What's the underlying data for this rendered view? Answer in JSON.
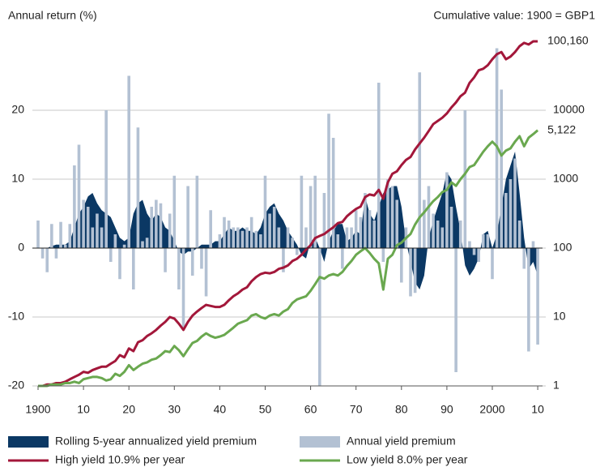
{
  "chart_data": {
    "type": "combo",
    "title": "Annual return (%)",
    "y2_title": "Cumulative value: 1900 = GBP1",
    "x": [
      1900,
      1901,
      1902,
      1903,
      1904,
      1905,
      1906,
      1907,
      1908,
      1909,
      1910,
      1911,
      1912,
      1913,
      1914,
      1915,
      1916,
      1917,
      1918,
      1919,
      1920,
      1921,
      1922,
      1923,
      1924,
      1925,
      1926,
      1927,
      1928,
      1929,
      1930,
      1931,
      1932,
      1933,
      1934,
      1935,
      1936,
      1937,
      1938,
      1939,
      1940,
      1941,
      1942,
      1943,
      1944,
      1945,
      1946,
      1947,
      1948,
      1949,
      1950,
      1951,
      1952,
      1953,
      1954,
      1955,
      1956,
      1957,
      1958,
      1959,
      1960,
      1961,
      1962,
      1963,
      1964,
      1965,
      1966,
      1967,
      1968,
      1969,
      1970,
      1971,
      1972,
      1973,
      1974,
      1975,
      1976,
      1977,
      1978,
      1979,
      1980,
      1981,
      1982,
      1983,
      1984,
      1985,
      1986,
      1987,
      1988,
      1989,
      1990,
      1991,
      1992,
      1993,
      1994,
      1995,
      1996,
      1997,
      1998,
      1999,
      2000,
      2001,
      2002,
      2003,
      2004,
      2005,
      2006,
      2007,
      2008,
      2009,
      2010
    ],
    "xlim": [
      1900,
      2011
    ],
    "xticks": [
      1900,
      {
        "value": 1910,
        "label": "10"
      },
      {
        "value": 1920,
        "label": "20"
      },
      {
        "value": 1930,
        "label": "30"
      },
      {
        "value": 1940,
        "label": "40"
      },
      {
        "value": 1950,
        "label": "50"
      },
      {
        "value": 1960,
        "label": "60"
      },
      {
        "value": 1970,
        "label": "70"
      },
      {
        "value": 1980,
        "label": "80"
      },
      {
        "value": 1990,
        "label": "90"
      },
      2000,
      {
        "value": 2010,
        "label": "10"
      }
    ],
    "ylim": [
      -20,
      30
    ],
    "yticks": [
      -20,
      -10,
      0,
      10,
      20
    ],
    "y2lim": [
      1,
      100000
    ],
    "y2ticks": [
      1,
      10,
      100,
      1000,
      10000
    ],
    "y2log": true,
    "grid": true,
    "series": [
      {
        "name": "Rolling 5-year annualized yield premium",
        "type": "area",
        "color": "#0b3864",
        "values": [
          0,
          0,
          0,
          0.3,
          0.5,
          0.5,
          0.5,
          1,
          3,
          5,
          6,
          7.5,
          8,
          6.5,
          5.5,
          5,
          4.5,
          3,
          1.5,
          1,
          1.5,
          5,
          6.5,
          7,
          5,
          4,
          5,
          4.5,
          3,
          2.5,
          1,
          -0.5,
          -1,
          -0.5,
          -0.5,
          0,
          0.5,
          0.5,
          0.5,
          1,
          1,
          2,
          3,
          2.5,
          2.5,
          3,
          2.5,
          2.5,
          2,
          3,
          5,
          6,
          6.5,
          5,
          4,
          2.5,
          1.5,
          0.5,
          -1,
          -1.5,
          1,
          1.5,
          0,
          -2,
          1,
          2.5,
          3.5,
          3.5,
          1,
          1.5,
          2.5,
          2,
          7.5,
          5,
          4,
          6,
          8,
          8.5,
          9,
          9,
          6,
          1,
          -2,
          -5,
          -6,
          -4,
          1.5,
          4,
          6,
          8,
          11,
          10,
          6,
          2.5,
          -2.5,
          -4,
          -3,
          -1.5,
          2,
          2.5,
          0,
          2,
          6,
          10,
          12,
          14,
          8,
          1.5,
          -3,
          -2,
          -4
        ]
      },
      {
        "name": "Annual yield premium",
        "type": "bar",
        "color": "#b3c1d3",
        "values": [
          4,
          -1.5,
          -3.5,
          3.5,
          -1.5,
          3.8,
          0.5,
          3.5,
          12,
          15,
          7,
          6,
          3,
          5,
          3,
          20,
          -2,
          2,
          -4.5,
          0.5,
          25,
          -6,
          17.5,
          1,
          1.5,
          6,
          7,
          6.5,
          -3.5,
          5,
          10.5,
          -6,
          -11.5,
          9,
          -4,
          10.5,
          -3,
          -7,
          5.5,
          0,
          2,
          4.5,
          4,
          3,
          3,
          2.5,
          3,
          4.5,
          2.5,
          2,
          10.5,
          5,
          6,
          3,
          -3.5,
          3,
          1.5,
          -1,
          10.5,
          3,
          9,
          10.5,
          -20,
          8,
          19.5,
          16,
          2,
          -3,
          3,
          3,
          5.5,
          4.5,
          8,
          5.5,
          4,
          24,
          -2,
          10,
          9,
          7,
          -5,
          3,
          -7,
          -6.5,
          25.5,
          7,
          9,
          5,
          4,
          3,
          11,
          6,
          -18,
          4,
          20,
          1,
          -1,
          -2,
          2,
          2,
          -4.5,
          29,
          23,
          8,
          10,
          13,
          4,
          -3,
          -15,
          1,
          -14
        ]
      },
      {
        "name": "High yield 10.9% per year",
        "type": "line",
        "axis": "y2",
        "color": "#a3173a",
        "values": [
          1,
          1,
          1.05,
          1.05,
          1.1,
          1.1,
          1.15,
          1.25,
          1.35,
          1.45,
          1.6,
          1.55,
          1.7,
          1.8,
          1.9,
          1.9,
          2.1,
          2.3,
          2.8,
          2.6,
          3.5,
          3.2,
          4.3,
          4.6,
          5.3,
          5.8,
          6.5,
          7.5,
          8.5,
          10,
          9.5,
          8,
          6.5,
          8.5,
          10.5,
          12,
          13.5,
          15,
          14.5,
          14,
          14,
          15,
          17.5,
          20,
          22,
          25,
          27,
          33,
          38,
          42,
          44,
          43,
          45,
          50,
          52,
          56,
          65,
          70,
          80,
          95,
          110,
          140,
          150,
          160,
          180,
          200,
          230,
          240,
          290,
          330,
          370,
          400,
          550,
          600,
          580,
          700,
          520,
          900,
          1200,
          1300,
          1600,
          1900,
          2100,
          2700,
          3300,
          4000,
          5000,
          6300,
          7000,
          7800,
          9000,
          11000,
          13000,
          16000,
          18000,
          25000,
          30000,
          38000,
          40000,
          45000,
          55000,
          65000,
          70000,
          55000,
          60000,
          70000,
          85000,
          95000,
          90000,
          100000,
          100160
        ],
        "value_labels": [
          null,
          null,
          null,
          null,
          null,
          null,
          null,
          null,
          null,
          null,
          null,
          null,
          null,
          null,
          null,
          null,
          null,
          null,
          null,
          null,
          null,
          null,
          null,
          null,
          null,
          null,
          null,
          null,
          null,
          null,
          null,
          null,
          null,
          null,
          null,
          null,
          null,
          null,
          null,
          null,
          null,
          null,
          null,
          null,
          null,
          null,
          null,
          null,
          null,
          null,
          null,
          null,
          null,
          null,
          null,
          null,
          null,
          null,
          null,
          null,
          null,
          null,
          null,
          null,
          null,
          null,
          null,
          null,
          null,
          null,
          null,
          null,
          null,
          null,
          null,
          null,
          null,
          null,
          null,
          null,
          null,
          null,
          null,
          null,
          null,
          null,
          null,
          null,
          null,
          null,
          null,
          null,
          null,
          null,
          null,
          null,
          null,
          null,
          null,
          null,
          null,
          null,
          null,
          null,
          null,
          null,
          null,
          null,
          null,
          null,
          "100,160"
        ]
      },
      {
        "name": "Low yield 8.0% per year",
        "type": "line",
        "axis": "y2",
        "color": "#6aa84f",
        "values": [
          1,
          1,
          1,
          1.05,
          1.05,
          1.05,
          1.1,
          1.1,
          1.15,
          1.1,
          1.25,
          1.3,
          1.35,
          1.35,
          1.3,
          1.2,
          1.25,
          1.5,
          1.4,
          1.6,
          2,
          1.7,
          1.9,
          2.1,
          2.2,
          2.4,
          2.5,
          2.8,
          3.2,
          3.1,
          3.8,
          3.3,
          2.7,
          3.4,
          4.2,
          4.5,
          5.2,
          5.8,
          5.3,
          5,
          5.2,
          5.5,
          6.2,
          7,
          8,
          8.5,
          9,
          10.5,
          11,
          10,
          9.5,
          10.5,
          11,
          10.5,
          12,
          13,
          16,
          18,
          19,
          20,
          24,
          30,
          38,
          36,
          40,
          42,
          40,
          45,
          55,
          65,
          80,
          90,
          100,
          85,
          70,
          60,
          25,
          70,
          80,
          110,
          120,
          140,
          160,
          220,
          280,
          330,
          400,
          480,
          550,
          650,
          700,
          900,
          800,
          1000,
          1200,
          1500,
          1600,
          2000,
          2500,
          3000,
          3500,
          3000,
          2200,
          2600,
          2800,
          3500,
          4200,
          3000,
          4000,
          4500,
          5122
        ],
        "value_labels": [
          null,
          null,
          null,
          null,
          null,
          null,
          null,
          null,
          null,
          null,
          null,
          null,
          null,
          null,
          null,
          null,
          null,
          null,
          null,
          null,
          null,
          null,
          null,
          null,
          null,
          null,
          null,
          null,
          null,
          null,
          null,
          null,
          null,
          null,
          null,
          null,
          null,
          null,
          null,
          null,
          null,
          null,
          null,
          null,
          null,
          null,
          null,
          null,
          null,
          null,
          null,
          null,
          null,
          null,
          null,
          null,
          null,
          null,
          null,
          null,
          null,
          null,
          null,
          null,
          null,
          null,
          null,
          null,
          null,
          null,
          null,
          null,
          null,
          null,
          null,
          null,
          null,
          null,
          null,
          null,
          null,
          null,
          null,
          null,
          null,
          null,
          null,
          null,
          null,
          null,
          null,
          null,
          null,
          null,
          null,
          null,
          null,
          null,
          null,
          null,
          null,
          null,
          null,
          null,
          null,
          null,
          null,
          null,
          null,
          null,
          "5,122"
        ]
      }
    ]
  }
}
